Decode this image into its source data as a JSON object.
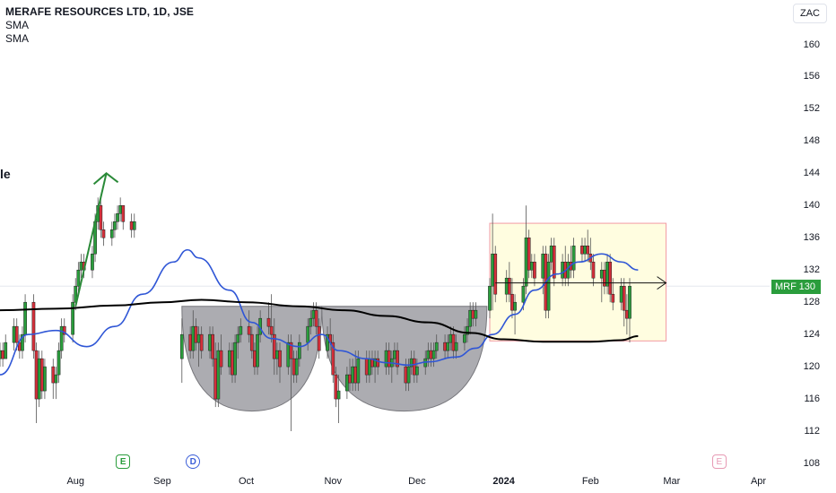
{
  "legend": {
    "title": "MERAFE RESOURCES LTD, 1D, JSE",
    "indicator1": "SMA",
    "indicator2": "SMA"
  },
  "currency": "ZAC",
  "cut_text": "le",
  "price_tag": {
    "symbol": "MRF",
    "value": "130",
    "color": "#2a9d3c"
  },
  "events": [
    {
      "kind": "earnings",
      "glyph": "E",
      "date": "2023-08-18"
    },
    {
      "kind": "dividend",
      "glyph": "D",
      "date": "2023-09-12"
    },
    {
      "kind": "earnings-upcoming",
      "glyph": "E",
      "date": "2024-03-18"
    }
  ],
  "colors": {
    "up": "#2a9d3c",
    "down": "#d32f3a",
    "sma_fast": "#2f56d6",
    "sma_slow": "#000000",
    "cup_fill": "#9e9ea3",
    "range_fill": "#fffde0",
    "range_border": "#f29aa3",
    "arrow_up": "#2a8a38"
  },
  "chart_data": {
    "type": "candlestick",
    "y_ticks": [
      "160",
      "156",
      "152",
      "148",
      "144",
      "140",
      "136",
      "132",
      "128",
      "124",
      "120",
      "116",
      "112",
      "108"
    ],
    "ylim": [
      108,
      162
    ],
    "x_ticks": [
      {
        "label": "Aug",
        "date": "2023-08-01",
        "bold": false
      },
      {
        "label": "Sep",
        "date": "2023-09-01",
        "bold": false
      },
      {
        "label": "Oct",
        "date": "2023-10-01",
        "bold": false
      },
      {
        "label": "Nov",
        "date": "2023-11-01",
        "bold": false
      },
      {
        "label": "Dec",
        "date": "2023-12-01",
        "bold": false
      },
      {
        "label": "2024",
        "date": "2024-01-01",
        "bold": true
      },
      {
        "label": "Feb",
        "date": "2024-02-01",
        "bold": false
      },
      {
        "label": "Mar",
        "date": "2024-03-01",
        "bold": false
      },
      {
        "label": "Apr",
        "date": "2024-04-01",
        "bold": false
      }
    ],
    "xlim": [
      "2023-07-05",
      "2024-04-05"
    ],
    "series": [
      {
        "name": "SMA",
        "kind": "sma-fast",
        "points": [
          [
            "2023-07-05",
            119
          ],
          [
            "2023-07-15",
            124
          ],
          [
            "2023-07-25",
            124.5
          ],
          [
            "2023-08-05",
            122.5
          ],
          [
            "2023-08-15",
            125
          ],
          [
            "2023-08-25",
            129
          ],
          [
            "2023-09-05",
            133
          ],
          [
            "2023-09-10",
            134.5
          ],
          [
            "2023-09-14",
            133.5
          ],
          [
            "2023-09-25",
            129.5
          ],
          [
            "2023-10-03",
            125.5
          ],
          [
            "2023-10-10",
            123.5
          ],
          [
            "2023-10-20",
            122.5
          ],
          [
            "2023-10-28",
            124
          ],
          [
            "2023-11-03",
            122
          ],
          [
            "2023-11-13",
            121
          ],
          [
            "2023-11-20",
            120.5
          ],
          [
            "2023-11-28",
            120.2
          ],
          [
            "2023-12-05",
            120.6
          ],
          [
            "2023-12-15",
            121.2
          ],
          [
            "2023-12-22",
            122.3
          ],
          [
            "2023-12-28",
            124
          ],
          [
            "2024-01-05",
            126.5
          ],
          [
            "2024-01-12",
            129.5
          ],
          [
            "2024-01-20",
            131.5
          ],
          [
            "2024-01-28",
            133
          ],
          [
            "2024-02-05",
            134
          ],
          [
            "2024-02-12",
            133
          ],
          [
            "2024-02-18",
            132
          ]
        ]
      },
      {
        "name": "SMA",
        "kind": "sma-slow",
        "points": [
          [
            "2023-07-05",
            127
          ],
          [
            "2023-07-25",
            127.2
          ],
          [
            "2023-08-15",
            127.6
          ],
          [
            "2023-09-01",
            128
          ],
          [
            "2023-09-15",
            128.3
          ],
          [
            "2023-10-01",
            128
          ],
          [
            "2023-10-20",
            127.5
          ],
          [
            "2023-11-05",
            127
          ],
          [
            "2023-11-20",
            126.3
          ],
          [
            "2023-12-05",
            125.5
          ],
          [
            "2023-12-20",
            124.2
          ],
          [
            "2024-01-01",
            123.4
          ],
          [
            "2024-01-15",
            123.1
          ],
          [
            "2024-02-01",
            123.1
          ],
          [
            "2024-02-12",
            123.3
          ],
          [
            "2024-02-18",
            123.8
          ]
        ]
      }
    ],
    "candles": [
      [
        "2023-07-05",
        121,
        123,
        120,
        122
      ],
      [
        "2023-07-06",
        122,
        123,
        120,
        121
      ],
      [
        "2023-07-07",
        121,
        124,
        121,
        123
      ],
      [
        "2023-07-10",
        123,
        126,
        122,
        125
      ],
      [
        "2023-07-11",
        125,
        126,
        122,
        123
      ],
      [
        "2023-07-12",
        123,
        124,
        121,
        122
      ],
      [
        "2023-07-13",
        122,
        125,
        121,
        124
      ],
      [
        "2023-07-14",
        124,
        129,
        123,
        128
      ],
      [
        "2023-07-17",
        128,
        129,
        121,
        122
      ],
      [
        "2023-07-18",
        122,
        123,
        113,
        116
      ],
      [
        "2023-07-19",
        116,
        122,
        115,
        121
      ],
      [
        "2023-07-20",
        121,
        122,
        116,
        117
      ],
      [
        "2023-07-21",
        117,
        121,
        116,
        120
      ],
      [
        "2023-07-24",
        120,
        121,
        116,
        118
      ],
      [
        "2023-07-25",
        118,
        120,
        116,
        119
      ],
      [
        "2023-07-26",
        119,
        123,
        118,
        122
      ],
      [
        "2023-07-27",
        122,
        126,
        121,
        125
      ],
      [
        "2023-07-28",
        125,
        126,
        123,
        124
      ],
      [
        "2023-07-31",
        124,
        129,
        123,
        128
      ],
      [
        "2023-08-01",
        128,
        131,
        127,
        130
      ],
      [
        "2023-08-02",
        130,
        133,
        129,
        132
      ],
      [
        "2023-08-03",
        132,
        134,
        131,
        133
      ],
      [
        "2023-08-04",
        133,
        134,
        131,
        132
      ],
      [
        "2023-08-07",
        132,
        135,
        131,
        134
      ],
      [
        "2023-08-08",
        134,
        139,
        133,
        138
      ],
      [
        "2023-08-09",
        138,
        141,
        137,
        140
      ],
      [
        "2023-08-10",
        140,
        141,
        136,
        137
      ],
      [
        "2023-08-11",
        137,
        138,
        135,
        136
      ],
      [
        "2023-08-14",
        136,
        138,
        135,
        137
      ],
      [
        "2023-08-15",
        137,
        139,
        136,
        138
      ],
      [
        "2023-08-16",
        138,
        140,
        137,
        139
      ],
      [
        "2023-08-17",
        139,
        141,
        138,
        140
      ],
      [
        "2023-08-18",
        140,
        140,
        137,
        138
      ],
      [
        "2023-08-21",
        138,
        139,
        136,
        137
      ],
      [
        "2023-08-22",
        137,
        139,
        136,
        138
      ],
      [
        "2023-09-08",
        121,
        126,
        118,
        124
      ],
      [
        "2023-09-11",
        124,
        125,
        121,
        122
      ],
      [
        "2023-09-12",
        122,
        127,
        121,
        125
      ],
      [
        "2023-09-13",
        125,
        126,
        122,
        123
      ],
      [
        "2023-09-14",
        123,
        125,
        120,
        124
      ],
      [
        "2023-09-15",
        124,
        125,
        121,
        122
      ],
      [
        "2023-09-18",
        122,
        125,
        121,
        124
      ],
      [
        "2023-09-19",
        124,
        125,
        120,
        121
      ],
      [
        "2023-09-20",
        121,
        123,
        115,
        116
      ],
      [
        "2023-09-21",
        116,
        123,
        115,
        122
      ],
      [
        "2023-09-22",
        122,
        124,
        119,
        120
      ],
      [
        "2023-09-25",
        120,
        123,
        119,
        122
      ],
      [
        "2023-09-26",
        122,
        123,
        118,
        119
      ],
      [
        "2023-09-27",
        119,
        124,
        118,
        123
      ],
      [
        "2023-09-28",
        123,
        125,
        121,
        124
      ],
      [
        "2023-09-29",
        124,
        126,
        123,
        125
      ],
      [
        "2023-10-02",
        125,
        127,
        123,
        124
      ],
      [
        "2023-10-03",
        124,
        125,
        121,
        122
      ],
      [
        "2023-10-04",
        122,
        123,
        119,
        120
      ],
      [
        "2023-10-05",
        120,
        125,
        119,
        124
      ],
      [
        "2023-10-06",
        124,
        127,
        123,
        126
      ],
      [
        "2023-10-09",
        126,
        128,
        124,
        125
      ],
      [
        "2023-10-10",
        125,
        129,
        123,
        124
      ],
      [
        "2023-10-11",
        124,
        126,
        119,
        121
      ],
      [
        "2023-10-12",
        121,
        123,
        119,
        122
      ],
      [
        "2023-10-13",
        122,
        123,
        118,
        120
      ],
      [
        "2023-10-16",
        120,
        124,
        119,
        123
      ],
      [
        "2023-10-17",
        123,
        124,
        112,
        121
      ],
      [
        "2023-10-18",
        121,
        122,
        118,
        119
      ],
      [
        "2023-10-19",
        119,
        122,
        118,
        121
      ],
      [
        "2023-10-20",
        121,
        124,
        120,
        123
      ],
      [
        "2023-10-23",
        123,
        126,
        122,
        125
      ],
      [
        "2023-10-24",
        125,
        127,
        124,
        126
      ],
      [
        "2023-10-25",
        126,
        128,
        125,
        127
      ],
      [
        "2023-10-26",
        127,
        128,
        124,
        125
      ],
      [
        "2023-10-27",
        125,
        126,
        121,
        122
      ],
      [
        "2023-10-30",
        122,
        125,
        121,
        124
      ],
      [
        "2023-10-31",
        124,
        126,
        122,
        123
      ],
      [
        "2023-11-01",
        123,
        124,
        118,
        119
      ],
      [
        "2023-11-02",
        119,
        120,
        115,
        116
      ],
      [
        "2023-11-03",
        116,
        119,
        113,
        117
      ],
      [
        "2023-11-06",
        117,
        120,
        116,
        119
      ],
      [
        "2023-11-07",
        119,
        121,
        117,
        118
      ],
      [
        "2023-11-08",
        118,
        121,
        117,
        120
      ],
      [
        "2023-11-09",
        120,
        122,
        117,
        118
      ],
      [
        "2023-11-10",
        118,
        122,
        117,
        121
      ],
      [
        "2023-11-13",
        121,
        122,
        118,
        119
      ],
      [
        "2023-11-14",
        119,
        122,
        118,
        121
      ],
      [
        "2023-11-15",
        121,
        122,
        119,
        120
      ],
      [
        "2023-11-16",
        120,
        122,
        118,
        121
      ],
      [
        "2023-11-17",
        121,
        122,
        119,
        120
      ],
      [
        "2023-11-20",
        120,
        123,
        119,
        122
      ],
      [
        "2023-11-21",
        122,
        123,
        119,
        120
      ],
      [
        "2023-11-22",
        120,
        122,
        118,
        121
      ],
      [
        "2023-11-23",
        121,
        123,
        120,
        122
      ],
      [
        "2023-11-24",
        122,
        123,
        119,
        120
      ],
      [
        "2023-11-27",
        120,
        121,
        117,
        118
      ],
      [
        "2023-11-28",
        118,
        121,
        117,
        120
      ],
      [
        "2023-11-29",
        120,
        122,
        119,
        121
      ],
      [
        "2023-11-30",
        121,
        122,
        118,
        119
      ],
      [
        "2023-12-01",
        119,
        121,
        118,
        120
      ],
      [
        "2023-12-04",
        120,
        122,
        119,
        121
      ],
      [
        "2023-12-05",
        121,
        123,
        120,
        122
      ],
      [
        "2023-12-06",
        122,
        123,
        120,
        121
      ],
      [
        "2023-12-07",
        121,
        123,
        120,
        122
      ],
      [
        "2023-12-08",
        122,
        124,
        121,
        123
      ],
      [
        "2023-12-11",
        123,
        124,
        121,
        122
      ],
      [
        "2023-12-12",
        122,
        124,
        121,
        123
      ],
      [
        "2023-12-13",
        123,
        125,
        122,
        124
      ],
      [
        "2023-12-14",
        124,
        125,
        121,
        122
      ],
      [
        "2023-12-15",
        122,
        124,
        121,
        123
      ],
      [
        "2023-12-18",
        123,
        125,
        122,
        124
      ],
      [
        "2023-12-19",
        124,
        126,
        123,
        125
      ],
      [
        "2023-12-20",
        125,
        128,
        124,
        127
      ],
      [
        "2023-12-21",
        127,
        128,
        125,
        126
      ],
      [
        "2023-12-22",
        126,
        128,
        125,
        127
      ],
      [
        "2023-12-27",
        127,
        131,
        126,
        130
      ],
      [
        "2023-12-28",
        130,
        139,
        127,
        134
      ],
      [
        "2023-12-29",
        134,
        135,
        128,
        129
      ],
      [
        "2024-01-02",
        129,
        132,
        128,
        131
      ],
      [
        "2024-01-03",
        131,
        133,
        128,
        129
      ],
      [
        "2024-01-04",
        129,
        131,
        126,
        127
      ],
      [
        "2024-01-05",
        127,
        129,
        124,
        128
      ],
      [
        "2024-01-08",
        128,
        131,
        127,
        130
      ],
      [
        "2024-01-09",
        130,
        140,
        129,
        136
      ],
      [
        "2024-01-10",
        136,
        137,
        131,
        132
      ],
      [
        "2024-01-11",
        132,
        134,
        131,
        133
      ],
      [
        "2024-01-12",
        133,
        134,
        130,
        131
      ],
      [
        "2024-01-15",
        131,
        135,
        129,
        134
      ],
      [
        "2024-01-16",
        134,
        135,
        126,
        127
      ],
      [
        "2024-01-17",
        127,
        134,
        126,
        133
      ],
      [
        "2024-01-18",
        133,
        136,
        132,
        135
      ],
      [
        "2024-01-19",
        135,
        136,
        130,
        131
      ],
      [
        "2024-01-22",
        131,
        134,
        130,
        133
      ],
      [
        "2024-01-23",
        133,
        135,
        130,
        131
      ],
      [
        "2024-01-24",
        131,
        134,
        130,
        133
      ],
      [
        "2024-01-25",
        133,
        135,
        131,
        132
      ],
      [
        "2024-01-26",
        132,
        136,
        131,
        135
      ],
      [
        "2024-01-29",
        135,
        136,
        133,
        134
      ],
      [
        "2024-01-30",
        134,
        136,
        133,
        135
      ],
      [
        "2024-01-31",
        135,
        137,
        133,
        134
      ],
      [
        "2024-02-01",
        134,
        136,
        132,
        133
      ],
      [
        "2024-02-02",
        133,
        134,
        130,
        131
      ],
      [
        "2024-02-05",
        131,
        133,
        128,
        132
      ],
      [
        "2024-02-06",
        132,
        133,
        129,
        130
      ],
      [
        "2024-02-07",
        130,
        134,
        129,
        133
      ],
      [
        "2024-02-08",
        133,
        134,
        128,
        129
      ],
      [
        "2024-02-09",
        129,
        131,
        127,
        128
      ],
      [
        "2024-02-12",
        128,
        131,
        127,
        130
      ],
      [
        "2024-02-13",
        130,
        131,
        125,
        127
      ],
      [
        "2024-02-14",
        127,
        129,
        124,
        126
      ],
      [
        "2024-02-15",
        126,
        131,
        123,
        130
      ]
    ],
    "annotations": [
      {
        "kind": "up-arrow",
        "from": [
          "2023-08-01",
          127.5
        ],
        "to": [
          "2023-08-12",
          144
        ]
      },
      {
        "kind": "rounding-bottom",
        "from": [
          "2023-09-08",
          127.5
        ],
        "to": [
          "2023-10-28",
          114.5
        ],
        "bottom": 114.5
      },
      {
        "kind": "rounding-bottom",
        "from": [
          "2023-10-28",
          127.5
        ],
        "to": [
          "2023-12-26",
          114.5
        ],
        "bottom": 114.5
      },
      {
        "kind": "range-box",
        "from": [
          "2023-12-27",
          137.8
        ],
        "to": [
          "2024-02-28",
          123.2
        ]
      },
      {
        "kind": "level-arrow",
        "from": [
          "2023-12-29",
          130.4
        ],
        "to": [
          "2024-02-28",
          130.4
        ]
      }
    ]
  }
}
